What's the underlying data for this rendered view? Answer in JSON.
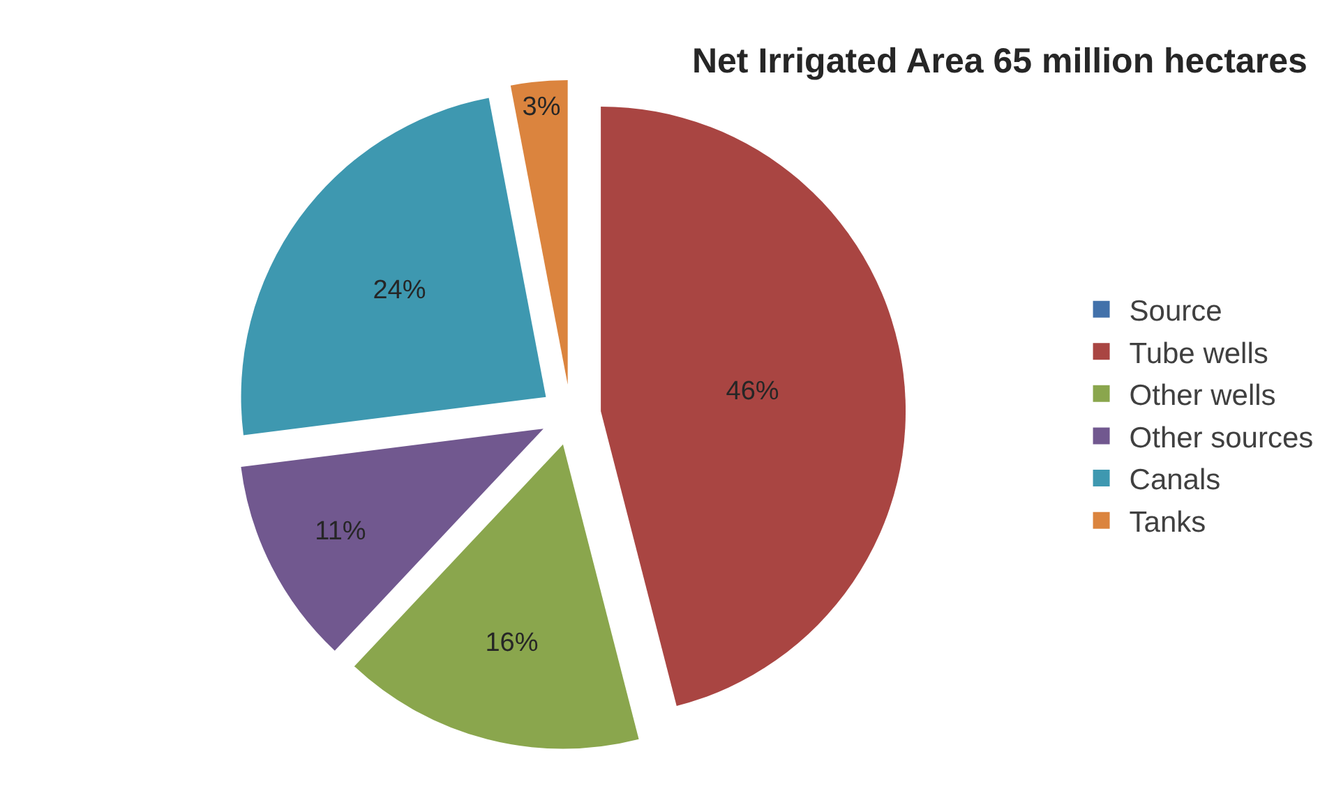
{
  "chart_data": {
    "type": "pie",
    "title": "Net Irrigated Area 65 million hectares",
    "categories": [
      "Source",
      "Tube wells",
      "Other wells",
      "Other sources",
      "Canals",
      "Tanks"
    ],
    "values": [
      0,
      46,
      16,
      11,
      24,
      3
    ],
    "colors": [
      "#4271aa",
      "#a94542",
      "#8aa64d",
      "#71588f",
      "#3e98b0",
      "#db843e"
    ],
    "value_labels": [
      null,
      "46%",
      "16%",
      "11%",
      "24%",
      "3%"
    ],
    "legend": "right"
  }
}
